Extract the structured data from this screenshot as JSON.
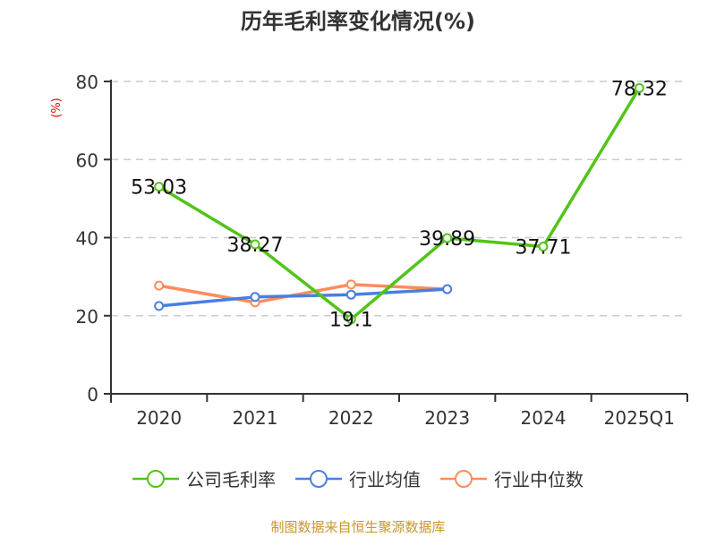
{
  "title": "历年毛利率变化情况(%)",
  "y_unit_label": "(%)",
  "footer": "制图数据来自恒生聚源数据库",
  "legend": [
    {
      "label": "公司毛利率",
      "color": "#52c41a"
    },
    {
      "label": "行业均值",
      "color": "#4a7fe0"
    },
    {
      "label": "行业中位数",
      "color": "#ff8c5a"
    }
  ],
  "chart_data": {
    "type": "line",
    "title": "历年毛利率变化情况(%)",
    "xlabel": "",
    "ylabel": "(%)",
    "categories": [
      "2020",
      "2021",
      "2022",
      "2023",
      "2024",
      "2025Q1"
    ],
    "ylim": [
      0,
      80
    ],
    "yticks": [
      0,
      20,
      40,
      60,
      80
    ],
    "grid": "horizontal dashed",
    "legend_position": "bottom",
    "series": [
      {
        "name": "公司毛利率",
        "color": "#52c41a",
        "values": [
          53.03,
          38.27,
          19.1,
          39.89,
          37.71,
          78.32
        ],
        "labels": [
          "53.03",
          "38.27",
          "19.1",
          "39.89",
          "37.71",
          "78.32"
        ]
      },
      {
        "name": "行业均值",
        "color": "#4a7fe0",
        "values": [
          22.5,
          24.8,
          25.4,
          26.8,
          null,
          null
        ]
      },
      {
        "name": "行业中位数",
        "color": "#ff8c5a",
        "values": [
          27.7,
          23.4,
          28.0,
          26.8,
          null,
          null
        ]
      }
    ]
  }
}
